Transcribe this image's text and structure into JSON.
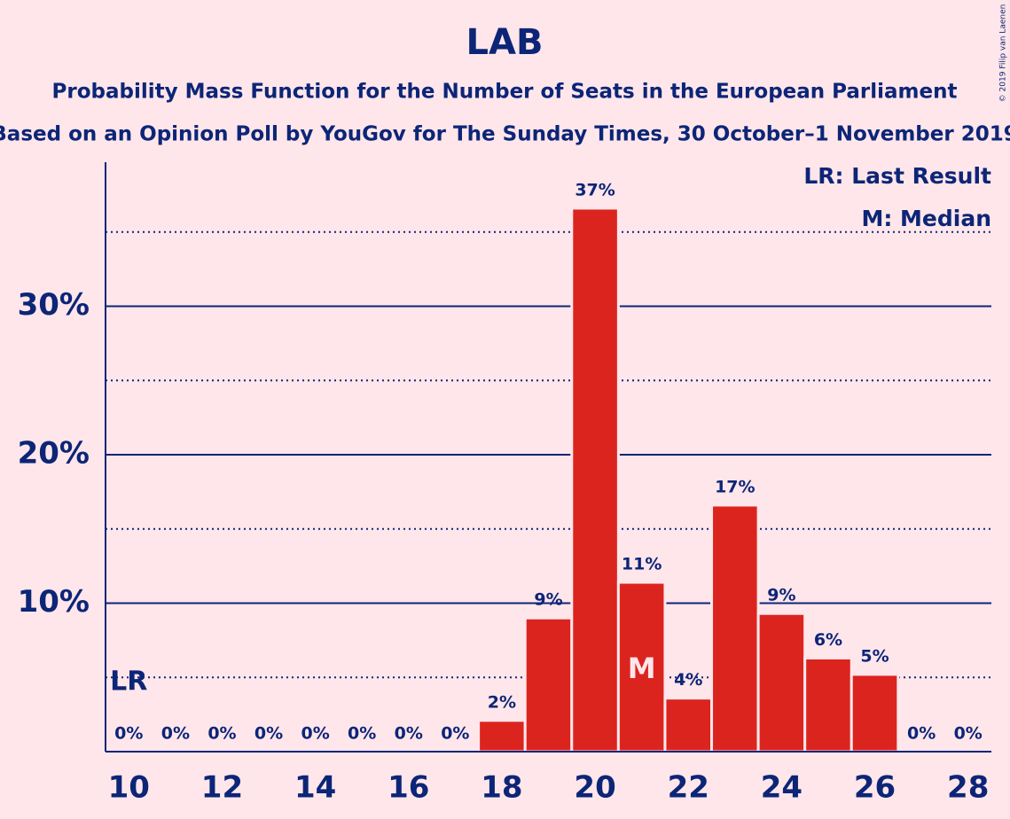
{
  "chart_data": {
    "type": "bar",
    "title": "LAB",
    "subtitle": "Probability Mass Function for the Number of Seats in the European Parliament",
    "subtitle_2": "Based on an Opinion Poll by YouGov for The Sunday Times, 30 October–1 November 2019",
    "x": [
      10,
      11,
      12,
      13,
      14,
      15,
      16,
      17,
      18,
      19,
      20,
      21,
      22,
      23,
      24,
      25,
      26,
      27,
      28
    ],
    "values": [
      0,
      0,
      0,
      0,
      0,
      0,
      0,
      0,
      2.1,
      9.0,
      36.6,
      11.4,
      3.6,
      16.6,
      9.3,
      6.3,
      5.2,
      0,
      0
    ],
    "value_labels": [
      "0%",
      "0%",
      "0%",
      "0%",
      "0%",
      "0%",
      "0%",
      "0%",
      "2%",
      "9%",
      "37%",
      "11%",
      "4%",
      "17%",
      "9%",
      "6%",
      "5%",
      "0%",
      "0%"
    ],
    "color": "#dc241f",
    "xlim": [
      9.5,
      28.5
    ],
    "xticks": [
      10,
      12,
      14,
      16,
      18,
      20,
      22,
      24,
      26,
      28
    ],
    "ylim": [
      0,
      39.7
    ],
    "yticks": [
      {
        "value": 10,
        "label": "10%"
      },
      {
        "value": 20,
        "label": "20%"
      },
      {
        "value": 30,
        "label": "30%"
      }
    ],
    "yticks_minor": [
      5,
      15,
      25,
      35
    ],
    "grid": true,
    "annotations": [
      {
        "label": "LR",
        "x": 10
      },
      {
        "label": "M",
        "x": 21
      }
    ],
    "legend": [
      "LR: Last Result",
      "M: Median"
    ],
    "credit": "© 2019 Filip van Laenen"
  }
}
